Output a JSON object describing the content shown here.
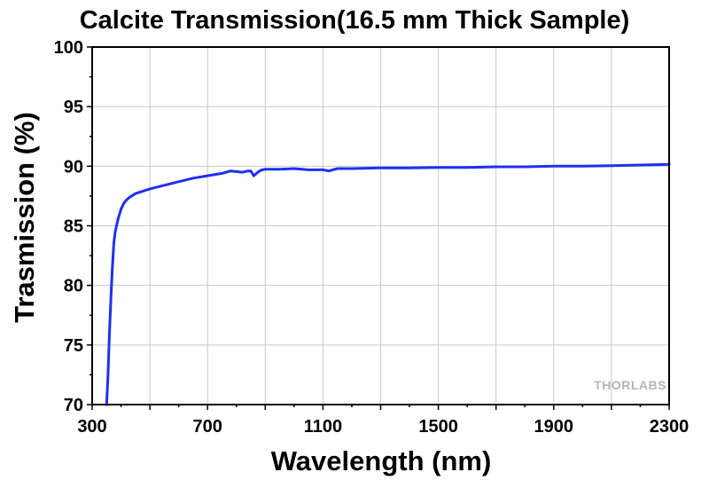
{
  "chart_data": {
    "type": "line",
    "title": "Calcite Transmission(16.5 mm Thick Sample)",
    "xlabel": "Wavelength (nm)",
    "ylabel": "Trasmission (%)",
    "xlim": [
      300,
      2300
    ],
    "ylim": [
      70,
      100
    ],
    "xticks": [
      300,
      700,
      1100,
      1500,
      1900,
      2300
    ],
    "yticks": [
      70,
      75,
      80,
      85,
      90,
      95,
      100
    ],
    "grid": true,
    "watermark": "THORLABS",
    "series": [
      {
        "name": "Calcite Transmission",
        "color": "#1f2ff0",
        "x": [
          350,
          355,
          360,
          365,
          370,
          375,
          380,
          390,
          400,
          410,
          420,
          430,
          450,
          500,
          550,
          600,
          650,
          700,
          750,
          780,
          800,
          820,
          840,
          850,
          860,
          870,
          880,
          890,
          900,
          950,
          1000,
          1050,
          1100,
          1120,
          1150,
          1200,
          1300,
          1400,
          1500,
          1600,
          1700,
          1800,
          1900,
          2000,
          2100,
          2200,
          2300
        ],
        "y": [
          70,
          72.5,
          76,
          79,
          81.5,
          83.5,
          84.5,
          85.6,
          86.4,
          86.9,
          87.2,
          87.4,
          87.7,
          88.1,
          88.4,
          88.7,
          89.0,
          89.2,
          89.4,
          89.6,
          89.55,
          89.5,
          89.6,
          89.6,
          89.2,
          89.4,
          89.6,
          89.7,
          89.75,
          89.75,
          89.8,
          89.7,
          89.7,
          89.6,
          89.8,
          89.8,
          89.85,
          89.85,
          89.9,
          89.9,
          89.95,
          89.95,
          90.0,
          90.0,
          90.05,
          90.1,
          90.15
        ]
      }
    ]
  }
}
